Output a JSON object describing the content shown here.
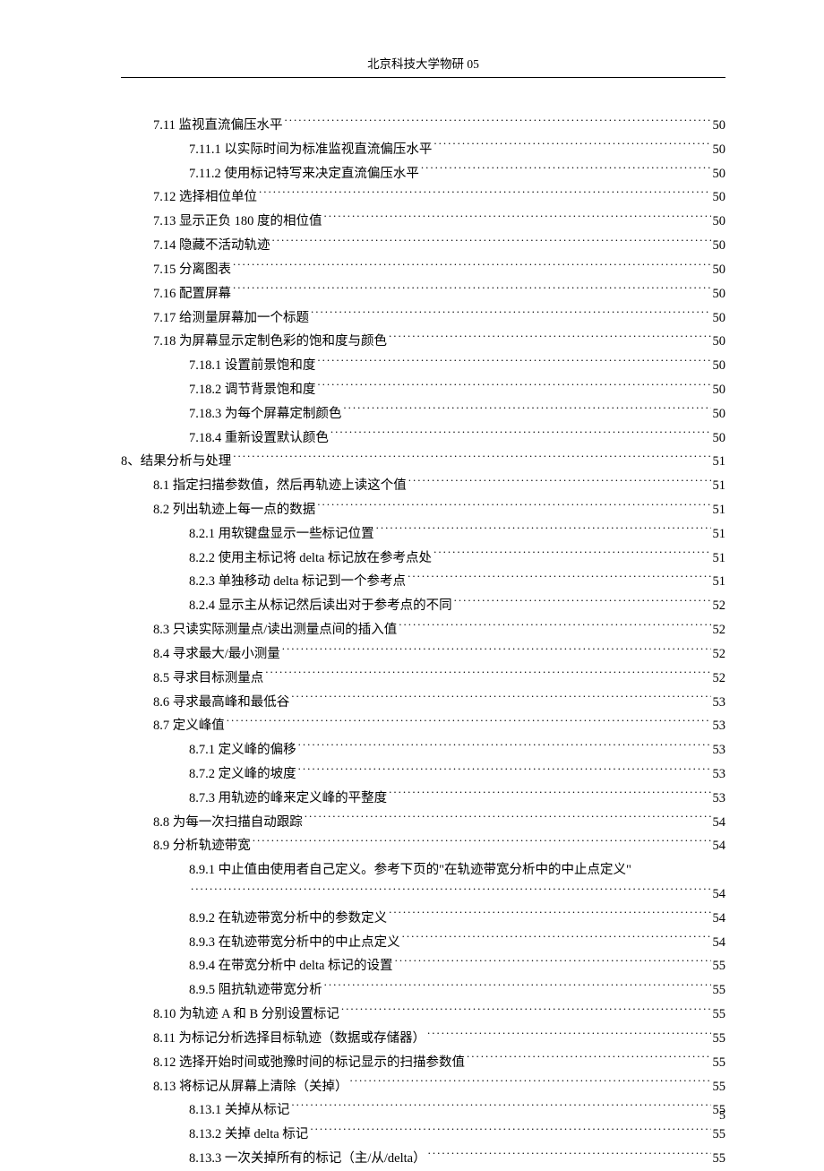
{
  "header": "北京科技大学物研 05",
  "footer_page": "5",
  "toc": [
    {
      "level": 2,
      "title": "7.11 监视直流偏压水平",
      "page": "50"
    },
    {
      "level": 3,
      "title": "7.11.1 以实际时间为标准监视直流偏压水平",
      "page": "50"
    },
    {
      "level": 3,
      "title": "7.11.2 使用标记特写来决定直流偏压水平",
      "page": "50"
    },
    {
      "level": 2,
      "title": "7.12 选择相位单位",
      "page": "50"
    },
    {
      "level": 2,
      "title": "7.13 显示正负 180 度的相位值",
      "page": "50"
    },
    {
      "level": 2,
      "title": "7.14 隐藏不活动轨迹",
      "page": "50"
    },
    {
      "level": 2,
      "title": "7.15 分离图表",
      "page": "50"
    },
    {
      "level": 2,
      "title": "7.16 配置屏幕",
      "page": "50"
    },
    {
      "level": 2,
      "title": "7.17 给测量屏幕加一个标题",
      "page": "50"
    },
    {
      "level": 2,
      "title": "7.18 为屏幕显示定制色彩的饱和度与颜色",
      "page": "50"
    },
    {
      "level": 3,
      "title": "7.18.1 设置前景饱和度",
      "page": "50"
    },
    {
      "level": 3,
      "title": "7.18.2 调节背景饱和度",
      "page": "50"
    },
    {
      "level": 3,
      "title": "7.18.3 为每个屏幕定制颜色",
      "page": "50"
    },
    {
      "level": 3,
      "title": "7.18.4 重新设置默认颜色",
      "page": "50"
    },
    {
      "level": 1,
      "title": "8、结果分析与处理",
      "page": "51"
    },
    {
      "level": 2,
      "title": "8.1 指定扫描参数值，然后再轨迹上读这个值",
      "page": "51"
    },
    {
      "level": 2,
      "title": "8.2 列出轨迹上每一点的数据",
      "page": "51"
    },
    {
      "level": 3,
      "title": "8.2.1 用软键盘显示一些标记位置",
      "page": "51"
    },
    {
      "level": 3,
      "title": "8.2.2 使用主标记将 delta 标记放在参考点处",
      "page": "51"
    },
    {
      "level": 3,
      "title": "8.2.3 单独移动 delta 标记到一个参考点",
      "page": "51"
    },
    {
      "level": 3,
      "title": "8.2.4 显示主从标记然后读出对于参考点的不同",
      "page": "52"
    },
    {
      "level": 2,
      "title": "8.3 只读实际测量点/读出测量点间的插入值",
      "page": "52"
    },
    {
      "level": 2,
      "title": "8.4 寻求最大/最小测量",
      "page": "52"
    },
    {
      "level": 2,
      "title": "8.5 寻求目标测量点",
      "page": "52"
    },
    {
      "level": 2,
      "title": "8.6 寻求最高峰和最低谷",
      "page": "53"
    },
    {
      "level": 2,
      "title": "8.7 定义峰值",
      "page": "53"
    },
    {
      "level": 3,
      "title": "8.7.1 定义峰的偏移",
      "page": "53"
    },
    {
      "level": 3,
      "title": "8.7.2 定义峰的坡度",
      "page": "53"
    },
    {
      "level": 3,
      "title": "8.7.3 用轨迹的峰来定义峰的平整度",
      "page": "53"
    },
    {
      "level": 2,
      "title": "8.8 为每一次扫描自动跟踪",
      "page": "54"
    },
    {
      "level": 2,
      "title": "8.9 分析轨迹带宽",
      "page": "54"
    },
    {
      "level": 3,
      "title": "8.9.1 中止值由使用者自己定义。参考下页的\"在轨迹带宽分析中的中止点定义\"",
      "page": "54",
      "wrap": true
    },
    {
      "level": 3,
      "title": "8.9.2 在轨迹带宽分析中的参数定义",
      "page": "54"
    },
    {
      "level": 3,
      "title": "8.9.3 在轨迹带宽分析中的中止点定义",
      "page": "54"
    },
    {
      "level": 3,
      "title": "8.9.4 在带宽分析中 delta 标记的设置",
      "page": "55"
    },
    {
      "level": 3,
      "title": "8.9.5 阻抗轨迹带宽分析",
      "page": "55"
    },
    {
      "level": 2,
      "title": "8.10 为轨迹 A 和 B 分别设置标记",
      "page": "55"
    },
    {
      "level": 2,
      "title": "8.11 为标记分析选择目标轨迹（数据或存储器）",
      "page": "55"
    },
    {
      "level": 2,
      "title": "8.12 选择开始时间或弛豫时间的标记显示的扫描参数值",
      "page": "55"
    },
    {
      "level": 2,
      "title": "8.13 将标记从屏幕上清除（关掉）",
      "page": "55"
    },
    {
      "level": 3,
      "title": "8.13.1 关掉从标记",
      "page": "55"
    },
    {
      "level": 3,
      "title": "8.13.2 关掉 delta 标记",
      "page": "55"
    },
    {
      "level": 3,
      "title": "8.13.3 一次关掉所有的标记（主/从/delta）",
      "page": "55"
    }
  ]
}
